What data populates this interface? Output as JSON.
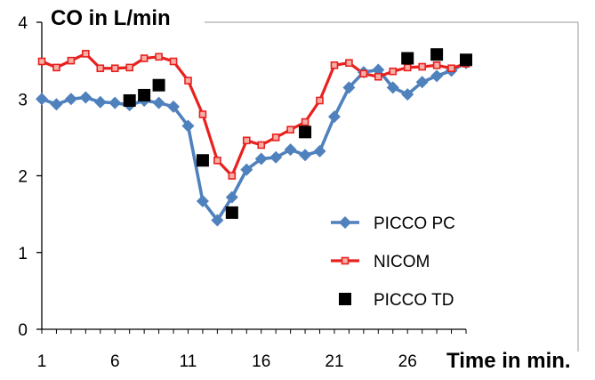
{
  "chart_data": {
    "type": "line",
    "title": "CO in L/min",
    "xlabel": "Time in min.",
    "ylabel": "",
    "xlim": [
      1,
      30
    ],
    "ylim": [
      0,
      4
    ],
    "x_ticks": [
      1,
      6,
      11,
      16,
      21,
      26
    ],
    "x_tick_labels": [
      "1",
      "6",
      "11",
      "16",
      "21",
      "26"
    ],
    "y_ticks": [
      0,
      1,
      2,
      3,
      4
    ],
    "y_tick_labels": [
      "0",
      "1",
      "2",
      "3",
      "4"
    ],
    "grid": false,
    "legend_position": "bottom-right",
    "series": [
      {
        "name": "PICCO PC",
        "style": "line-diamond",
        "color": "#4F81BD",
        "x": [
          1,
          2,
          3,
          4,
          5,
          6,
          7,
          8,
          9,
          10,
          11,
          12,
          13,
          14,
          15,
          16,
          17,
          18,
          19,
          20,
          21,
          22,
          23,
          24,
          25,
          26,
          27,
          28,
          29,
          30
        ],
        "values": [
          3.0,
          2.93,
          3.0,
          3.02,
          2.96,
          2.95,
          2.92,
          2.98,
          2.95,
          2.9,
          2.65,
          1.67,
          1.42,
          1.72,
          2.08,
          2.22,
          2.24,
          2.34,
          2.27,
          2.32,
          2.77,
          3.15,
          3.35,
          3.38,
          3.15,
          3.06,
          3.22,
          3.3,
          3.37,
          3.47
        ]
      },
      {
        "name": "NICOM",
        "style": "line-square",
        "color": "#E8211E",
        "x": [
          1,
          2,
          3,
          4,
          5,
          6,
          7,
          8,
          9,
          10,
          11,
          12,
          13,
          14,
          15,
          16,
          17,
          18,
          19,
          20,
          21,
          22,
          23,
          24,
          25,
          26,
          27,
          28,
          29,
          30
        ],
        "values": [
          3.49,
          3.41,
          3.5,
          3.59,
          3.4,
          3.4,
          3.41,
          3.53,
          3.55,
          3.49,
          3.24,
          2.8,
          2.2,
          2.0,
          2.46,
          2.4,
          2.5,
          2.6,
          2.7,
          2.98,
          3.44,
          3.47,
          3.33,
          3.29,
          3.36,
          3.41,
          3.42,
          3.44,
          3.4,
          3.46
        ]
      },
      {
        "name": "PICCO TD",
        "style": "marker-square",
        "color": "#000000",
        "x": [
          7,
          8,
          9,
          12,
          14,
          19,
          26,
          28,
          30
        ],
        "values": [
          2.98,
          3.05,
          3.18,
          2.2,
          1.52,
          2.57,
          3.53,
          3.58,
          3.51
        ]
      }
    ]
  }
}
